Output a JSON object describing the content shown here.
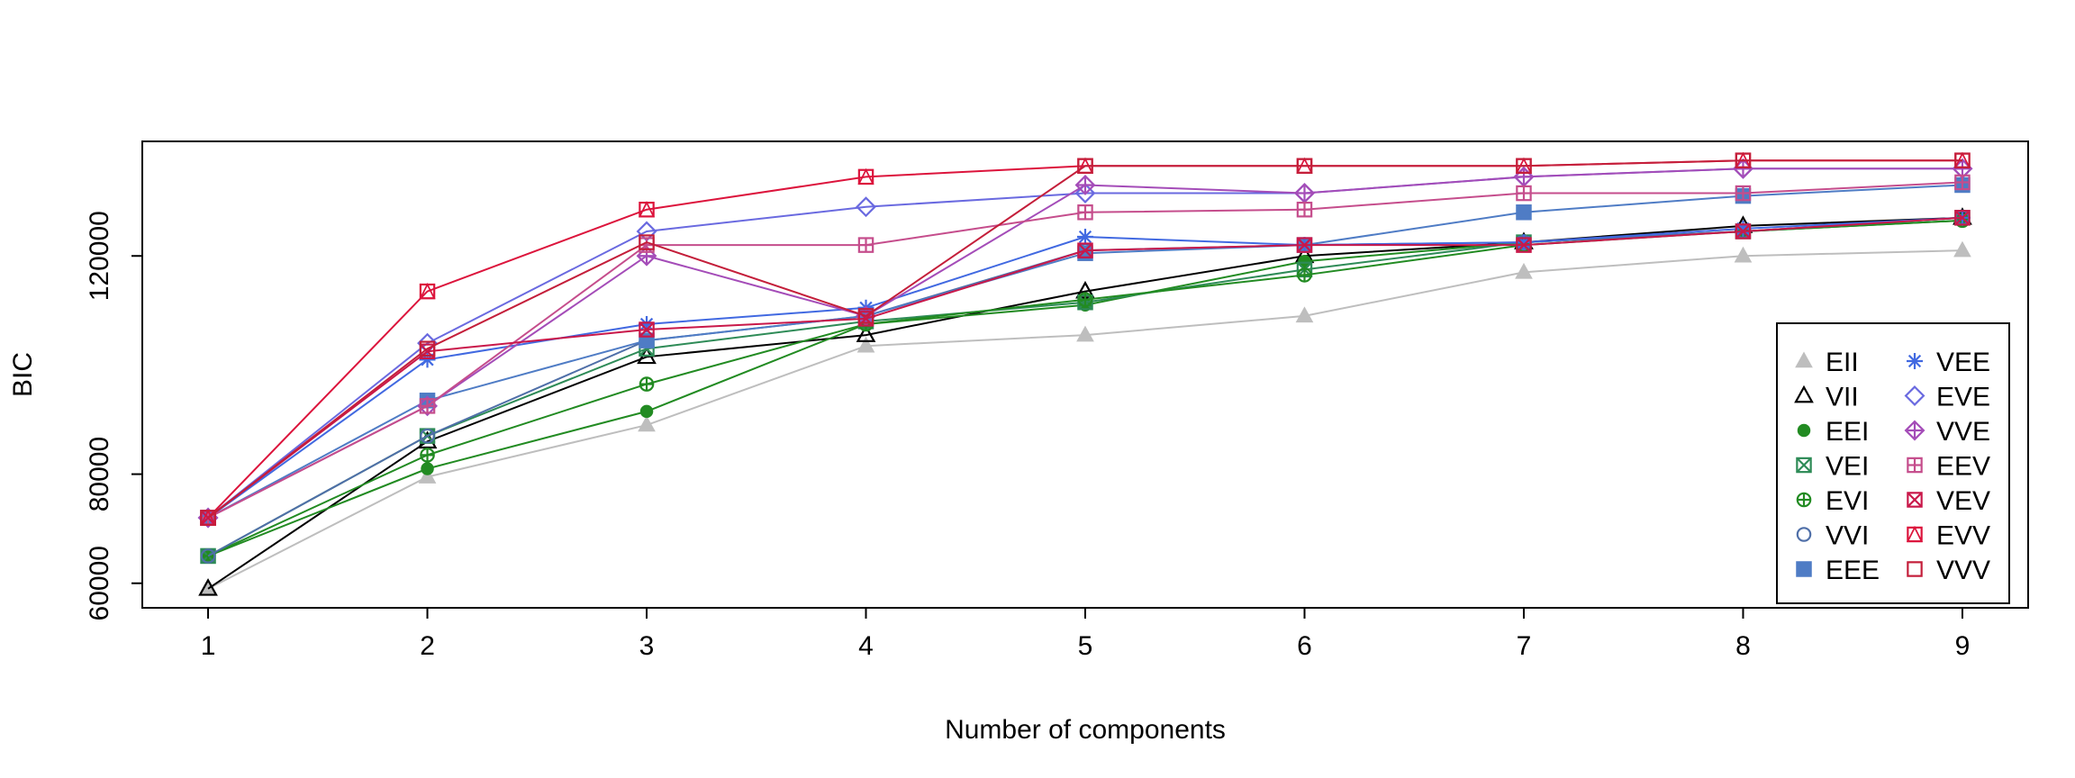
{
  "chart_data": {
    "type": "line",
    "title": "",
    "xlabel": "Number of components",
    "ylabel": "BIC",
    "x": [
      1,
      2,
      3,
      4,
      5,
      6,
      7,
      8,
      9
    ],
    "xlim": [
      0.7,
      9.3
    ],
    "ylim": [
      55500,
      141000
    ],
    "x_ticks": [
      "1",
      "2",
      "3",
      "4",
      "5",
      "6",
      "7",
      "8",
      "9"
    ],
    "y_ticks": [
      60000,
      80000,
      120000
    ],
    "y_tick_labels": [
      "60000",
      "80000",
      "120000"
    ],
    "grid": false,
    "legend_position": "bottom-right",
    "legend_columns": 2,
    "series": [
      {
        "name": "EII",
        "color": "#bebebe",
        "marker": "triangle-filled",
        "values": [
          59000,
          79500,
          89000,
          103500,
          105500,
          109000,
          117000,
          120000,
          121000
        ]
      },
      {
        "name": "VII",
        "color": "#000000",
        "marker": "triangle-open",
        "values": [
          59000,
          86000,
          101500,
          105500,
          113500,
          120000,
          122500,
          125500,
          127000
        ]
      },
      {
        "name": "EEI",
        "color": "#228b22",
        "marker": "circle-filled",
        "values": [
          65000,
          81000,
          91500,
          107500,
          111000,
          119000,
          122500,
          124500,
          126500
        ]
      },
      {
        "name": "VEI",
        "color": "#2e8b57",
        "marker": "square-x",
        "values": [
          65000,
          87000,
          103000,
          108000,
          111500,
          117500,
          122500,
          124500,
          127000
        ]
      },
      {
        "name": "EVI",
        "color": "#228b22",
        "marker": "circle-plus",
        "values": [
          65000,
          83500,
          96500,
          107500,
          112000,
          116500,
          122000,
          124500,
          126500
        ]
      },
      {
        "name": "VVI",
        "color": "#4f6fa8",
        "marker": "circle-open",
        "values": [
          65000,
          87000,
          104500,
          109000,
          121000,
          122000,
          122500,
          124500,
          127000
        ]
      },
      {
        "name": "EEE",
        "color": "#4f7cc5",
        "marker": "square-filled",
        "values": [
          72000,
          93500,
          104500,
          109000,
          120500,
          122000,
          128000,
          131000,
          133000
        ]
      },
      {
        "name": "VEE",
        "color": "#4169e1",
        "marker": "asterisk",
        "values": [
          72000,
          101000,
          107500,
          110500,
          123500,
          122000,
          122500,
          125000,
          127000
        ]
      },
      {
        "name": "EVE",
        "color": "#6a6ae0",
        "marker": "diamond-open",
        "values": [
          72000,
          104000,
          124500,
          129000,
          131500,
          131500,
          134500,
          136000,
          136000
        ]
      },
      {
        "name": "VVE",
        "color": "#a44cb8",
        "marker": "diamond-plus",
        "values": [
          72000,
          92500,
          120000,
          109000,
          133000,
          131500,
          134500,
          136000,
          136000
        ]
      },
      {
        "name": "EEV",
        "color": "#c54d8c",
        "marker": "square-plus",
        "values": [
          72000,
          92500,
          122000,
          122000,
          128000,
          128500,
          131500,
          131500,
          133500
        ]
      },
      {
        "name": "VEV",
        "color": "#c9184a",
        "marker": "square-x",
        "values": [
          72000,
          102500,
          106500,
          108500,
          121000,
          122000,
          122000,
          124500,
          127000
        ]
      },
      {
        "name": "EVV",
        "color": "#dc143c",
        "marker": "square-triangle",
        "values": [
          72000,
          113500,
          128500,
          134500,
          136500,
          136500,
          136500,
          137500,
          137500
        ]
      },
      {
        "name": "VVV",
        "color": "#c41e3a",
        "marker": "square-open",
        "values": [
          72000,
          103000,
          122500,
          109000,
          136500,
          136500,
          136500,
          137500,
          137500
        ]
      }
    ]
  }
}
